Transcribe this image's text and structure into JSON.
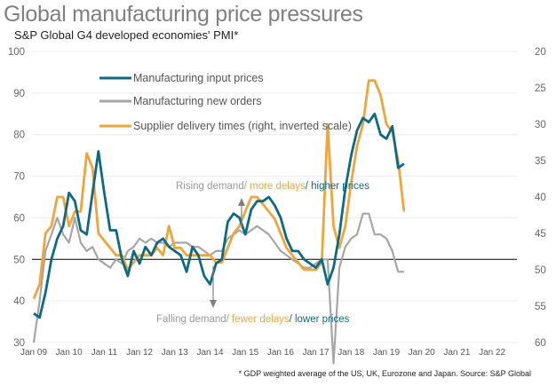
{
  "title": "Global manufacturing price pressures",
  "subtitle": "S&P Global G4 developed economies' PMI*",
  "footnote": "* GDP weighted average of the US, UK, Eurozone and Japan.   Source: S&P Global",
  "annotations": {
    "rising": [
      "Rising demand",
      "/ ",
      "more delays",
      "/ ",
      "higher prices"
    ],
    "falling": [
      "Falling demand",
      "/ ",
      "fewer delays",
      "/ ",
      "lower prices"
    ]
  },
  "colors": {
    "input": "#0e6a82",
    "orders": "#a6a6a6",
    "delivery": "#f0a53c",
    "grid": "#ececec",
    "fifty": "#000000",
    "arrow": "#808080"
  },
  "chart_data": {
    "type": "line",
    "title": "Global manufacturing price pressures",
    "subtitle": "S&P Global G4 developed economies' PMI*",
    "x_start": 2009.0,
    "x_step_years": 0.1667,
    "x_ticks": [
      "Jan 09",
      "Jan 10",
      "Jan 11",
      "Jan 12",
      "Jan 13",
      "Jan 14",
      "Jan 15",
      "Jan 16",
      "Jan 17",
      "Jan 18",
      "Jan 19",
      "Jan 20",
      "Jan 21",
      "Jan 22"
    ],
    "ylim_left": [
      30,
      100
    ],
    "yticks_left": [
      30,
      40,
      50,
      60,
      70,
      80,
      90,
      100
    ],
    "ylim_right_inverted": [
      20,
      60
    ],
    "yticks_right": [
      20,
      25,
      30,
      35,
      40,
      45,
      50,
      55,
      60
    ],
    "reference_line": 50,
    "legend": [
      "Manufacturing input prices",
      "Manufacturing new orders",
      "Supplier delivery times (right, inverted scale)"
    ],
    "legend_placement": "top-left",
    "series": [
      {
        "name": "Manufacturing input prices",
        "axis": "left",
        "values": [
          37,
          36,
          42,
          50,
          55,
          58,
          66,
          64,
          57,
          56,
          66,
          76,
          66,
          57,
          57,
          50,
          46,
          52,
          49,
          53,
          51,
          54,
          55,
          53,
          52,
          51,
          47,
          53,
          51,
          46,
          44,
          49,
          50,
          59,
          61,
          60,
          56,
          62,
          64,
          64,
          65,
          63,
          60,
          55,
          52,
          52,
          50,
          49,
          48,
          50,
          44,
          48,
          56,
          67,
          75,
          81,
          84,
          83,
          85,
          80,
          79,
          82,
          72,
          73
        ]
      },
      {
        "name": "Manufacturing new orders",
        "axis": "left",
        "values": [
          30,
          40,
          52,
          56,
          60,
          56,
          54,
          60,
          54,
          52,
          53,
          50,
          49,
          48,
          50,
          49,
          52,
          53,
          55,
          54,
          55,
          54,
          54,
          53,
          54,
          54,
          54,
          53,
          53,
          52,
          51,
          52,
          52,
          55,
          56,
          57,
          56,
          57,
          58,
          57,
          56,
          54,
          52,
          51,
          50,
          49,
          48,
          48,
          49,
          50,
          50,
          25,
          48,
          53,
          55,
          56,
          61,
          61,
          56,
          56,
          55,
          52,
          47,
          47
        ]
      },
      {
        "name": "Supplier delivery times (right, inverted scale)",
        "axis": "right",
        "values": [
          54,
          52,
          45,
          44,
          40,
          40,
          44,
          42,
          42,
          34,
          36,
          45,
          46,
          47,
          48,
          48,
          50,
          49,
          48,
          48,
          48,
          47,
          48,
          44,
          47,
          47,
          48,
          48,
          48,
          48,
          48,
          49,
          49,
          47,
          45,
          44,
          42,
          40,
          40,
          41,
          42,
          43,
          45,
          47,
          48,
          49,
          50,
          50,
          50,
          49,
          30,
          44,
          47,
          44,
          38,
          33,
          30,
          24,
          24,
          26,
          30,
          31,
          35,
          42
        ]
      }
    ]
  }
}
